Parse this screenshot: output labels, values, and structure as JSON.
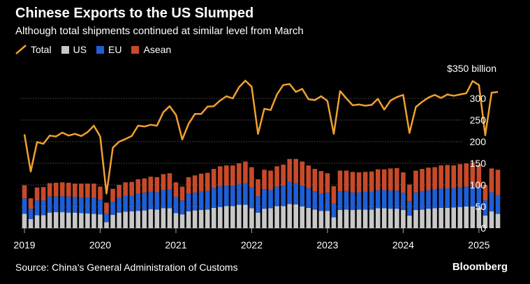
{
  "header": {
    "title": "Chinese Exports to the US Slumped",
    "subtitle": "Although total shipments continued at similar level from March"
  },
  "legend": [
    {
      "label": "Total",
      "color": "#f0a030",
      "shape": "line"
    },
    {
      "label": "US",
      "color": "#c8c8c8",
      "shape": "square"
    },
    {
      "label": "EU",
      "color": "#1f5fd6",
      "shape": "square"
    },
    {
      "label": "Asean",
      "color": "#c84a2a",
      "shape": "square"
    }
  ],
  "footer": {
    "source": "Source: China's General Administration of Customs",
    "brand": "Bloomberg"
  },
  "chart_data": {
    "type": "bar",
    "stacked": true,
    "unit_label": "$350 billion",
    "ylim": [
      0,
      350
    ],
    "yticks": [
      "300",
      "250",
      "200",
      "150",
      "100",
      "50",
      "0"
    ],
    "ytick_values": [
      300,
      250,
      200,
      150,
      100,
      50,
      0
    ],
    "xticks": [
      "2019",
      "2020",
      "2021",
      "2022",
      "2023",
      "2024",
      "2025"
    ],
    "grid": true,
    "x_start": "2019-01",
    "x": [
      "2019-01",
      "2019-02",
      "2019-03",
      "2019-04",
      "2019-05",
      "2019-06",
      "2019-07",
      "2019-08",
      "2019-09",
      "2019-10",
      "2019-11",
      "2019-12",
      "2020-01",
      "2020-02",
      "2020-03",
      "2020-04",
      "2020-05",
      "2020-06",
      "2020-07",
      "2020-08",
      "2020-09",
      "2020-10",
      "2020-11",
      "2020-12",
      "2021-01",
      "2021-02",
      "2021-03",
      "2021-04",
      "2021-05",
      "2021-06",
      "2021-07",
      "2021-08",
      "2021-09",
      "2021-10",
      "2021-11",
      "2021-12",
      "2022-01",
      "2022-02",
      "2022-03",
      "2022-04",
      "2022-05",
      "2022-06",
      "2022-07",
      "2022-08",
      "2022-09",
      "2022-10",
      "2022-11",
      "2022-12",
      "2023-01",
      "2023-02",
      "2023-03",
      "2023-04",
      "2023-05",
      "2023-06",
      "2023-07",
      "2023-08",
      "2023-09",
      "2023-10",
      "2023-11",
      "2023-12",
      "2024-01",
      "2024-02",
      "2024-03",
      "2024-04",
      "2024-05",
      "2024-06",
      "2024-07",
      "2024-08",
      "2024-09",
      "2024-10",
      "2024-11",
      "2024-12",
      "2025-01",
      "2025-02",
      "2025-03",
      "2025-04"
    ],
    "series": [
      {
        "name": "US",
        "color": "#c8c8c8",
        "values": [
          33,
          21,
          30,
          30,
          36,
          37,
          37,
          36,
          36,
          35,
          34,
          33,
          32,
          14,
          31,
          36,
          38,
          39,
          40,
          41,
          44,
          43,
          46,
          46,
          35,
          32,
          39,
          41,
          42,
          43,
          47,
          49,
          51,
          51,
          54,
          54,
          46,
          36,
          45,
          46,
          51,
          51,
          56,
          55,
          50,
          47,
          43,
          40,
          40,
          25,
          42,
          43,
          42,
          43,
          43,
          43,
          46,
          46,
          45,
          45,
          42,
          29,
          42,
          43,
          45,
          46,
          47,
          47,
          48,
          49,
          50,
          50,
          48,
          29,
          39,
          33
        ]
      },
      {
        "name": "EU",
        "color": "#1f5fd6",
        "values": [
          36,
          24,
          34,
          34,
          37,
          36,
          37,
          37,
          36,
          36,
          37,
          37,
          34,
          20,
          30,
          34,
          37,
          36,
          40,
          41,
          40,
          40,
          42,
          43,
          37,
          32,
          41,
          41,
          43,
          43,
          46,
          48,
          47,
          47,
          48,
          50,
          48,
          38,
          45,
          42,
          45,
          47,
          51,
          49,
          48,
          46,
          42,
          40,
          42,
          32,
          43,
          43,
          40,
          40,
          41,
          41,
          42,
          42,
          42,
          42,
          40,
          34,
          40,
          42,
          43,
          43,
          45,
          45,
          44,
          45,
          46,
          47,
          46,
          35,
          44,
          43
        ]
      },
      {
        "name": "Asean",
        "color": "#c84a2a",
        "values": [
          30,
          24,
          30,
          31,
          31,
          32,
          32,
          32,
          31,
          32,
          32,
          33,
          30,
          25,
          30,
          30,
          31,
          32,
          33,
          33,
          35,
          35,
          37,
          38,
          34,
          32,
          38,
          40,
          41,
          42,
          44,
          46,
          47,
          47,
          48,
          50,
          47,
          39,
          45,
          45,
          47,
          49,
          53,
          56,
          56,
          52,
          52,
          52,
          45,
          40,
          48,
          47,
          48,
          46,
          46,
          47,
          48,
          48,
          51,
          52,
          47,
          38,
          51,
          52,
          52,
          52,
          53,
          54,
          53,
          54,
          54,
          55,
          53,
          36,
          55,
          59
        ]
      },
      {
        "name": "Total",
        "color": "#f0a030",
        "type": "line",
        "values": [
          217,
          131,
          199,
          195,
          214,
          212,
          221,
          214,
          218,
          213,
          222,
          237,
          212,
          80,
          186,
          200,
          206,
          213,
          237,
          235,
          239,
          237,
          268,
          282,
          262,
          205,
          241,
          264,
          264,
          281,
          282,
          295,
          305,
          300,
          326,
          341,
          327,
          218,
          276,
          273,
          309,
          331,
          333,
          315,
          322,
          298,
          296,
          305,
          294,
          218,
          317,
          300,
          284,
          286,
          283,
          285,
          299,
          274,
          295,
          303,
          308,
          220,
          280,
          292,
          302,
          308,
          301,
          309,
          306,
          309,
          312,
          340,
          331,
          215,
          313,
          315
        ]
      }
    ]
  }
}
